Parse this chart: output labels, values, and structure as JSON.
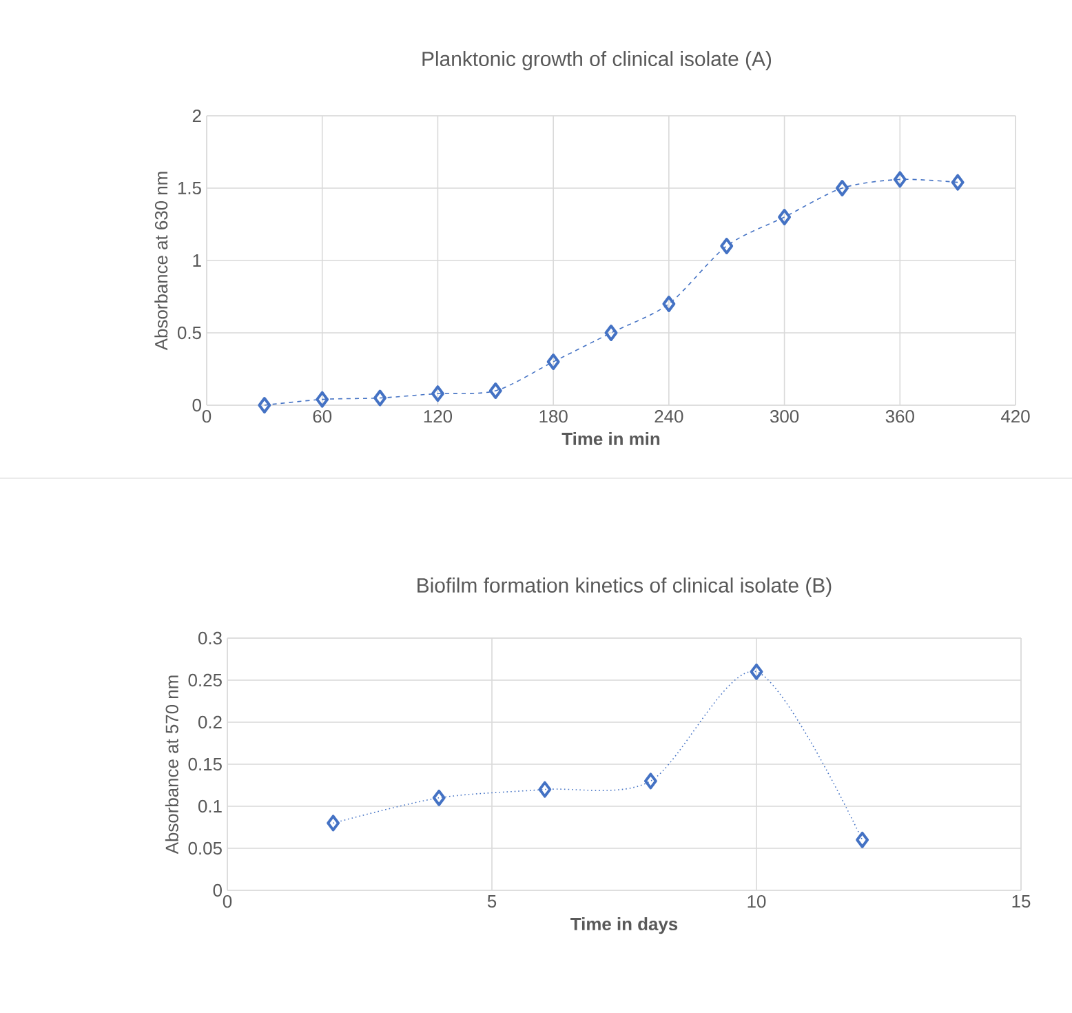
{
  "chart_data": [
    {
      "type": "line",
      "title": "Planktonic growth of clinical isolate (A)",
      "xlabel": "Time in min",
      "ylabel": "Absorbance at 630 nm",
      "x": [
        30,
        60,
        90,
        120,
        150,
        180,
        210,
        240,
        270,
        300,
        330,
        360,
        390
      ],
      "series": [
        {
          "color": "#4472c4",
          "values": [
            0,
            0.04,
            0.05,
            0.08,
            0.1,
            0.3,
            0.5,
            0.7,
            1.1,
            1.3,
            1.5,
            1.56,
            1.54
          ]
        }
      ],
      "xlim": [
        0,
        420
      ],
      "xticks": [
        0,
        60,
        120,
        180,
        240,
        300,
        360,
        420
      ],
      "ylim": [
        0,
        2
      ],
      "yticks": [
        0,
        0.5,
        1,
        1.5,
        2
      ],
      "grid": true,
      "marker": "diamond",
      "line_style": "dashed"
    },
    {
      "type": "line",
      "title": "Biofilm formation kinetics of clinical isolate (B)",
      "xlabel": "Time in days",
      "ylabel": "Absorbance at 570 nm",
      "x": [
        2,
        4,
        6,
        8,
        10,
        12
      ],
      "series": [
        {
          "color": "#4472c4",
          "values": [
            0.08,
            0.11,
            0.12,
            0.13,
            0.26,
            0.06
          ]
        }
      ],
      "xlim": [
        0,
        15
      ],
      "xticks": [
        0,
        5,
        10,
        15
      ],
      "ylim": [
        0,
        0.3
      ],
      "yticks": [
        0,
        0.05,
        0.1,
        0.15,
        0.2,
        0.25,
        0.3
      ],
      "grid": true,
      "marker": "diamond",
      "line_style": "dotted"
    }
  ]
}
